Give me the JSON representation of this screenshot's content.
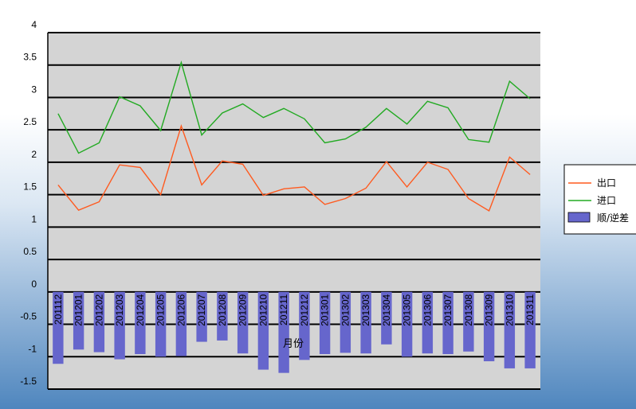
{
  "chart_data": {
    "type": "bar+line",
    "categories": [
      "201112",
      "201201",
      "201202",
      "201203",
      "201204",
      "201205",
      "201206",
      "201207",
      "201208",
      "201209",
      "201210",
      "201211",
      "201212",
      "201301",
      "201302",
      "201303",
      "201304",
      "201305",
      "201306",
      "201307",
      "201308",
      "201309",
      "201310",
      "201311"
    ],
    "xlabel": "月份",
    "ylim": [
      -1.5,
      4
    ],
    "yticks": [
      -1.5,
      -1,
      -0.5,
      0,
      0.5,
      1,
      1.5,
      2,
      2.5,
      3,
      3.5,
      4
    ],
    "grid": "horizontal",
    "legend_position": "right",
    "plot_background": "#d4d4d4",
    "series": [
      {
        "name": "出口",
        "type": "line",
        "color": "#ff5a1f",
        "values": [
          1.65,
          1.26,
          1.39,
          1.96,
          1.92,
          1.5,
          2.56,
          1.65,
          2.02,
          1.97,
          1.49,
          1.59,
          1.62,
          1.35,
          1.44,
          1.6,
          2.01,
          1.62,
          2.0,
          1.89,
          1.44,
          1.25,
          2.08,
          1.81
        ]
      },
      {
        "name": "进口",
        "type": "line",
        "color": "#22aa22",
        "values": [
          2.75,
          2.14,
          2.3,
          3.01,
          2.87,
          2.49,
          3.54,
          2.42,
          2.76,
          2.9,
          2.69,
          2.83,
          2.67,
          2.3,
          2.36,
          2.54,
          2.83,
          2.59,
          2.94,
          2.84,
          2.35,
          2.31,
          3.25,
          2.98
        ]
      },
      {
        "name": "顺/逆差",
        "type": "bar",
        "color": "#6666cc",
        "values": [
          -1.11,
          -0.89,
          -0.93,
          -1.04,
          -0.96,
          -1.0,
          -0.99,
          -0.77,
          -0.75,
          -0.95,
          -1.2,
          -1.25,
          -1.05,
          -0.96,
          -0.94,
          -0.95,
          -0.81,
          -1.0,
          -0.95,
          -0.96,
          -0.92,
          -1.07,
          -1.18,
          -1.18
        ]
      }
    ]
  }
}
